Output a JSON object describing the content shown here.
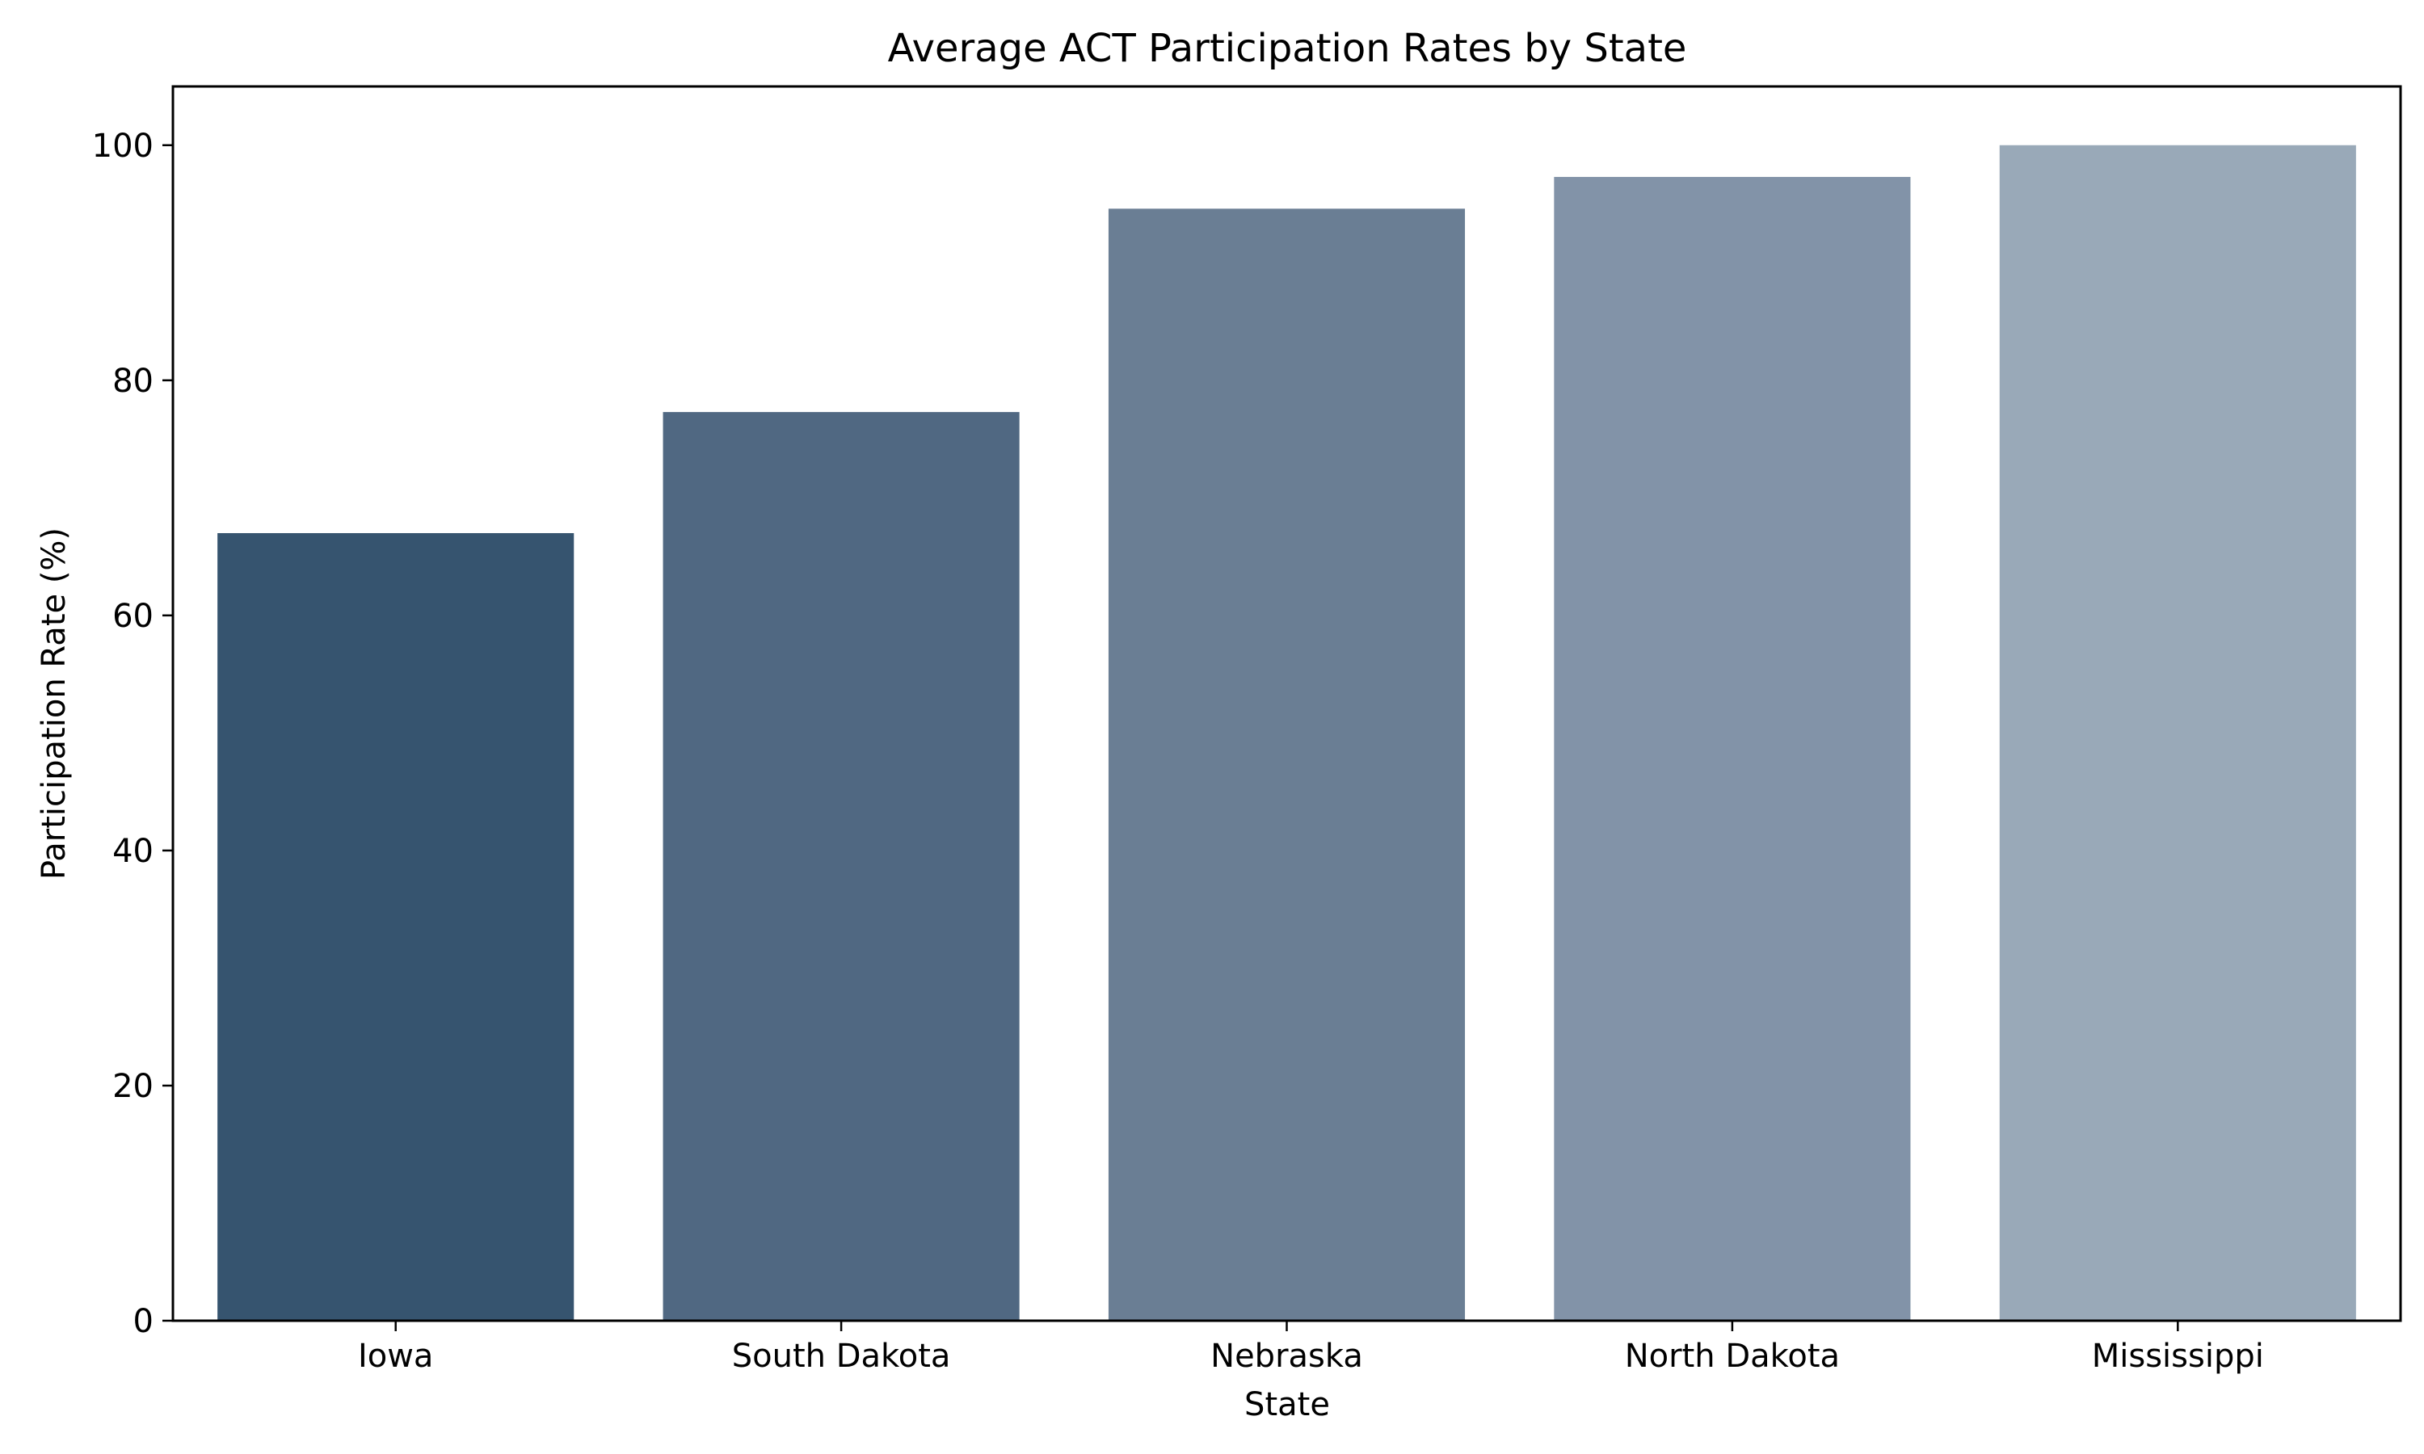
{
  "chart_data": {
    "type": "bar",
    "title": "Average ACT Participation Rates by State",
    "xlabel": "State",
    "ylabel": "Participation Rate (%)",
    "categories": [
      "Iowa",
      "South Dakota",
      "Nebraska",
      "North Dakota",
      "Mississippi"
    ],
    "values": [
      67.0,
      77.3,
      94.6,
      97.3,
      100.0
    ],
    "colors": [
      "#36546f",
      "#506882",
      "#6a7e94",
      "#8293a8",
      "#99a9b8"
    ],
    "ylim": [
      0,
      105
    ],
    "yticks": [
      0,
      20,
      40,
      60,
      80,
      100
    ],
    "grid": false,
    "legend": "none"
  }
}
